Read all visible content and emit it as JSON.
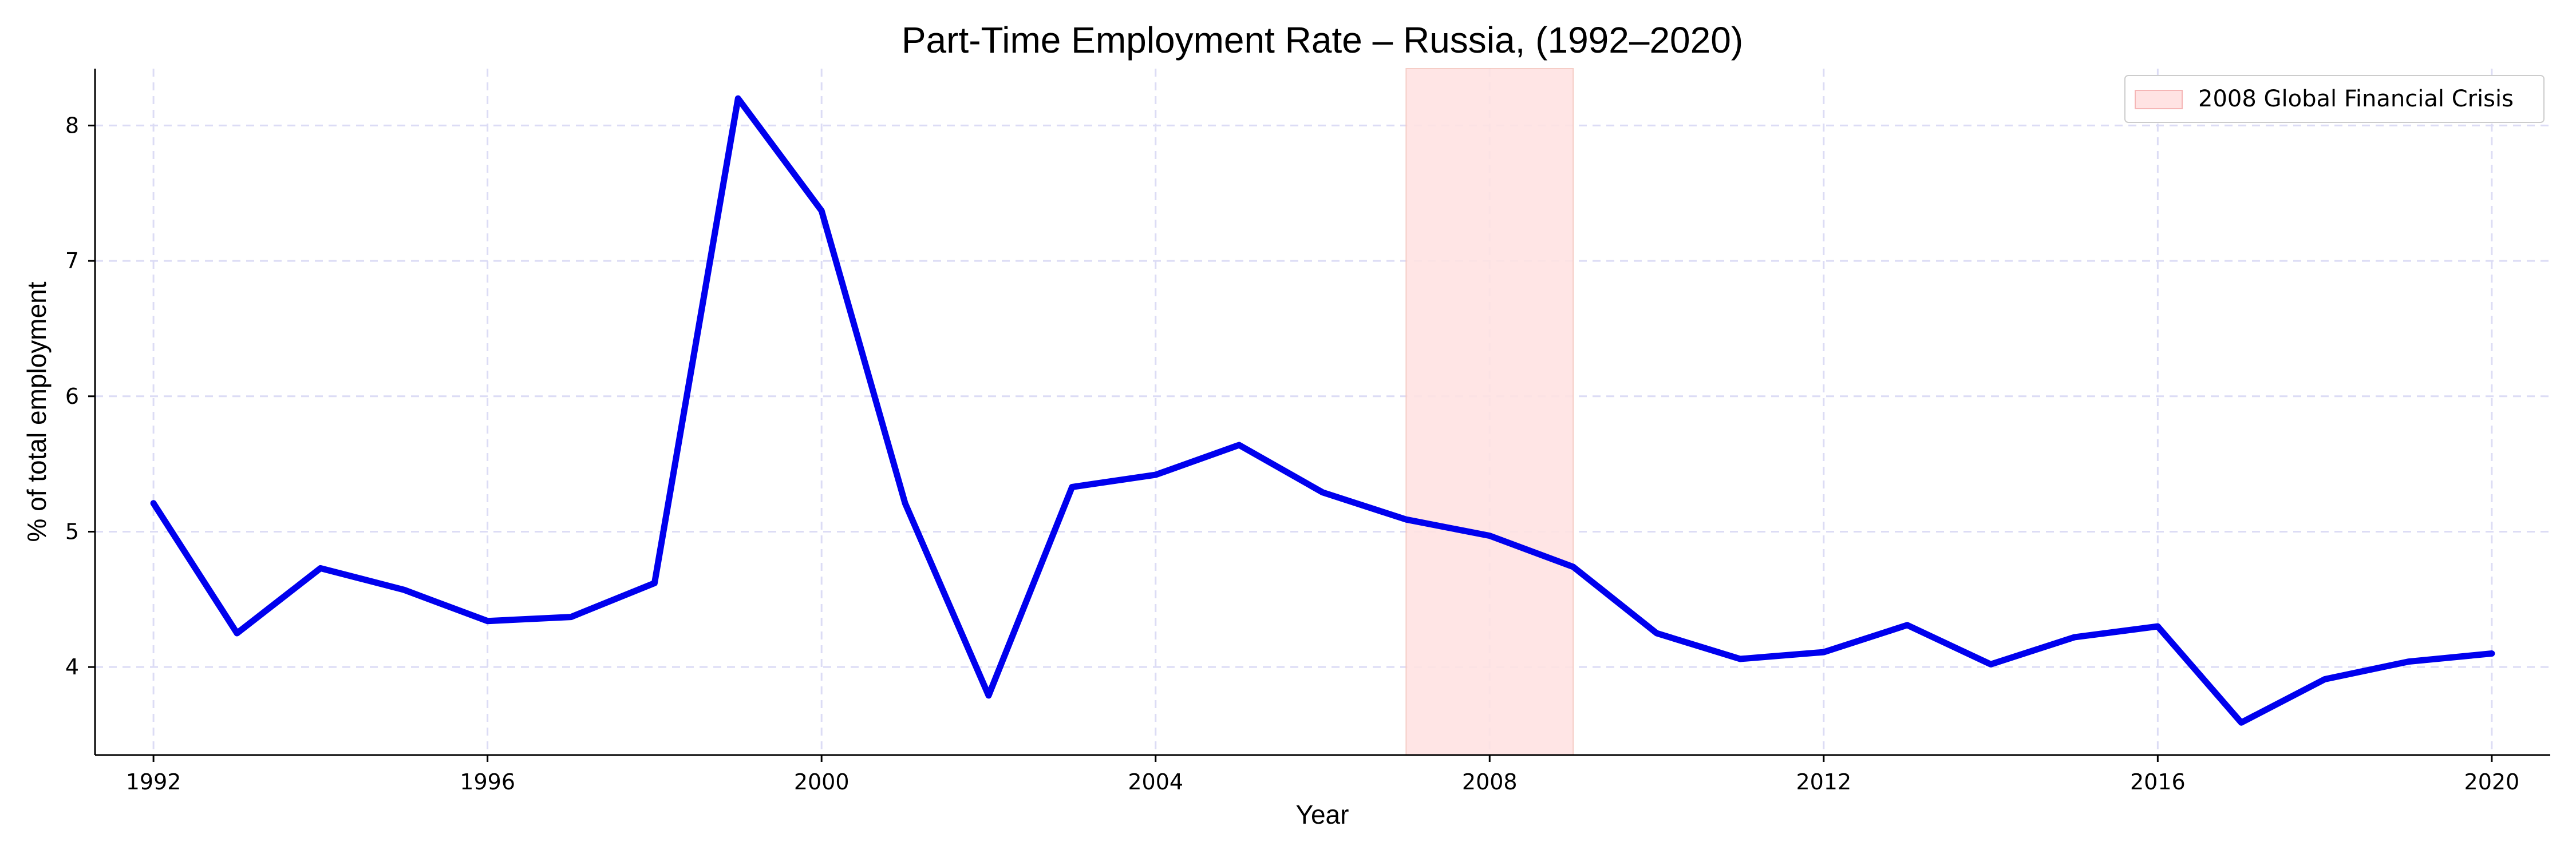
{
  "chart_data": {
    "type": "line",
    "title": "Part-Time Employment Rate – Russia, (1992–2020)",
    "xlabel": "Year",
    "ylabel": "% of total employment",
    "x": [
      1992,
      1993,
      1994,
      1995,
      1996,
      1997,
      1998,
      1999,
      2000,
      2001,
      2002,
      2003,
      2004,
      2005,
      2006,
      2007,
      2008,
      2009,
      2010,
      2011,
      2012,
      2013,
      2014,
      2015,
      2016,
      2017,
      2018,
      2019,
      2020
    ],
    "series": [
      {
        "values": [
          5.21,
          4.25,
          4.73,
          4.57,
          4.34,
          4.37,
          4.62,
          8.2,
          7.37,
          5.21,
          3.79,
          5.33,
          5.42,
          5.64,
          5.29,
          5.09,
          4.97,
          4.74,
          4.25,
          4.06,
          4.11,
          4.31,
          4.02,
          4.22,
          4.3,
          3.59,
          3.91,
          4.04,
          4.1
        ],
        "color": "#0000ee"
      }
    ],
    "xticks": [
      "1992",
      "1996",
      "2000",
      "2004",
      "2008",
      "2012",
      "2016",
      "2020"
    ],
    "yticks": [
      "4",
      "5",
      "6",
      "7",
      "8"
    ],
    "xlim": [
      1991.3,
      2020.7
    ],
    "ylim": [
      3.35,
      8.42
    ],
    "grid": true,
    "legend": {
      "position": "top-right",
      "entries": [
        {
          "label": "2008 Global Financial Crisis",
          "color": "#ffe3e3"
        }
      ]
    },
    "shaded_region": {
      "x_start": 2007,
      "x_end": 2009,
      "color": "#ffe3e3"
    }
  }
}
